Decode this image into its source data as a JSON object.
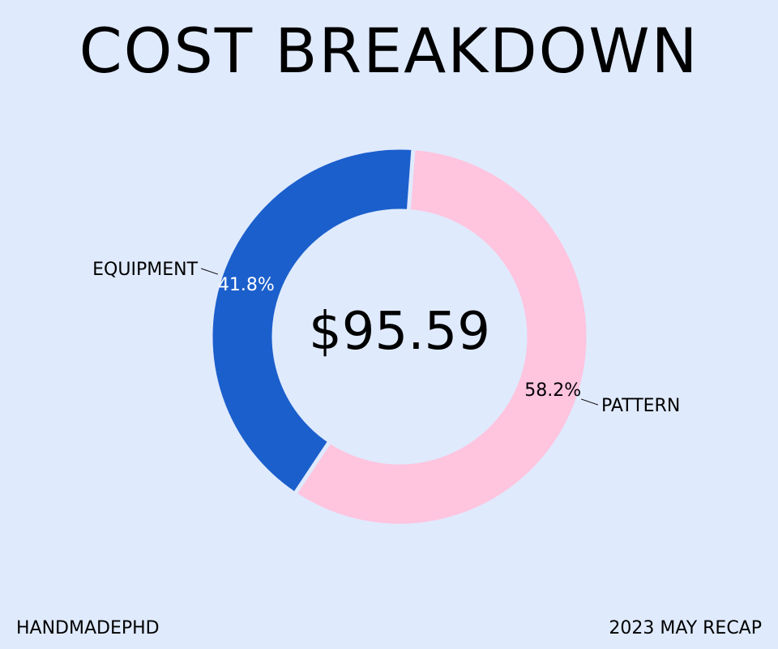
{
  "header": {
    "title": "COST BREAKDOWN"
  },
  "chart_data": {
    "type": "pie",
    "title": "COST BREAKDOWN",
    "center_label": "$95.59",
    "slices": [
      {
        "label": "PATTERN",
        "value": 58.2,
        "pct_label": "58.2%",
        "color": "#ffc4de",
        "pct_text_color": "#000000"
      },
      {
        "label": "EQUIPMENT",
        "value": 41.8,
        "pct_label": "41.8%",
        "color": "#1b5fcc",
        "pct_text_color": "#ffffff"
      }
    ]
  },
  "footer": {
    "left": "HANDMADEPHD",
    "right": "2023 MAY RECAP"
  },
  "colors": {
    "background": "#dfeafd",
    "text": "#000000"
  }
}
